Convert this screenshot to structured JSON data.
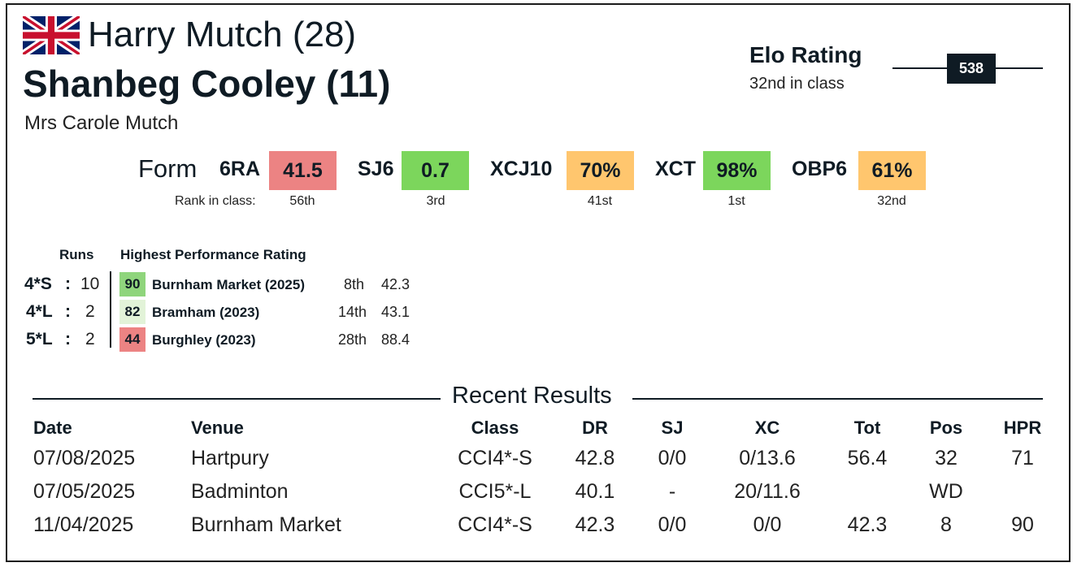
{
  "header": {
    "flag_icon": "uk-flag-icon",
    "rider": "Harry Mutch (28)",
    "horse": "Shanbeg Cooley (11)",
    "owner": "Mrs Carole Mutch"
  },
  "elo": {
    "title": "Elo Rating",
    "rank": "32nd in class",
    "value": "538"
  },
  "form": {
    "label": "Form",
    "rank_label": "Rank in class:",
    "metrics": [
      {
        "name": "6RA",
        "value": "41.5",
        "rank": "56th",
        "color": "#ec8383"
      },
      {
        "name": "SJ6",
        "value": "0.7",
        "rank": "3rd",
        "color": "#7cd65c"
      },
      {
        "name": "XCJ10",
        "value": "70%",
        "rank": "41st",
        "color": "#ffc66e"
      },
      {
        "name": "XCT",
        "value": "98%",
        "rank": "1st",
        "color": "#7cd65c"
      },
      {
        "name": "OBP6",
        "value": "61%",
        "rank": "32nd",
        "color": "#ffc66e"
      }
    ]
  },
  "hpr": {
    "runs_header": "Runs",
    "hpr_header": "Highest Performance Rating",
    "rows": [
      {
        "level": "4*S",
        "runs": "10",
        "hpr": "90",
        "event": "Burnham Market (2025)",
        "place": "8th",
        "score": "42.3",
        "color": "#8fd57c"
      },
      {
        "level": "4*L",
        "runs": "2",
        "hpr": "82",
        "event": "Bramham (2023)",
        "place": "14th",
        "score": "43.1",
        "color": "#e2f3d8"
      },
      {
        "level": "5*L",
        "runs": "2",
        "hpr": "44",
        "event": "Burghley (2023)",
        "place": "28th",
        "score": "88.4",
        "color": "#ec8383"
      }
    ]
  },
  "results": {
    "title": "Recent Results",
    "columns": [
      "Date",
      "Venue",
      "Class",
      "DR",
      "SJ",
      "XC",
      "Tot",
      "Pos",
      "HPR"
    ],
    "rows": [
      [
        "07/08/2025",
        "Hartpury",
        "CCI4*-S",
        "42.8",
        "0/0",
        "0/13.6",
        "56.4",
        "32",
        "71"
      ],
      [
        "07/05/2025",
        "Badminton",
        "CCI5*-L",
        "40.1",
        "-",
        "20/11.6",
        "",
        "WD",
        ""
      ],
      [
        "11/04/2025",
        "Burnham Market",
        "CCI4*-S",
        "42.3",
        "0/0",
        "0/0",
        "42.3",
        "8",
        "90"
      ]
    ]
  }
}
